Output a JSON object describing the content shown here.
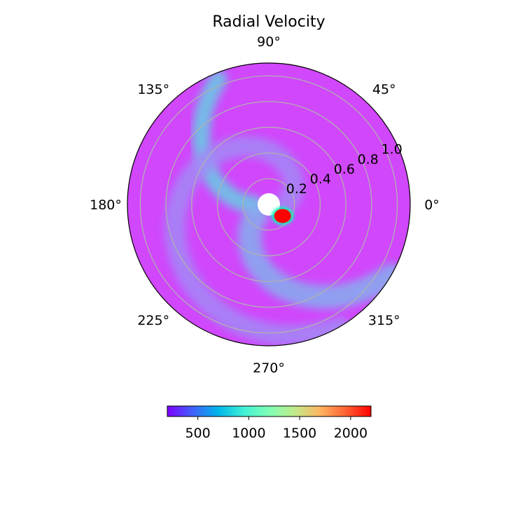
{
  "chart_data": {
    "type": "heatmap",
    "projection": "polar",
    "title": "Radial Velocity",
    "angular_ticks": [
      {
        "angle": 0,
        "label": "0°"
      },
      {
        "angle": 45,
        "label": "45°"
      },
      {
        "angle": 90,
        "label": "90°"
      },
      {
        "angle": 135,
        "label": "135°"
      },
      {
        "angle": 180,
        "label": "180°"
      },
      {
        "angle": 225,
        "label": "225°"
      },
      {
        "angle": 270,
        "label": "270°"
      },
      {
        "angle": 315,
        "label": "315°"
      }
    ],
    "radial_ticks": [
      {
        "value": 0.2,
        "label": "0.2"
      },
      {
        "value": 0.4,
        "label": "0.4"
      },
      {
        "value": 0.6,
        "label": "0.6"
      },
      {
        "value": 0.8,
        "label": "0.8"
      },
      {
        "value": 1.0,
        "label": "1.0"
      }
    ],
    "rlim": [
      0.0,
      1.1
    ],
    "inner_hole_radius": 0.06,
    "grid": true,
    "background_value": 380,
    "features": [
      {
        "kind": "spiral-stream",
        "start_angle": 112,
        "end_angle": 182,
        "r_start": 1.05,
        "r_end": 0.12,
        "value": 800
      },
      {
        "kind": "spiral-stream",
        "start_angle": 0,
        "end_angle": 300,
        "r_start": 0.12,
        "r_end": 1.1,
        "value": 560
      },
      {
        "kind": "spiral-stream",
        "start_angle": 220,
        "end_angle": 330,
        "r_start": 0.12,
        "r_end": 1.1,
        "value": 680
      },
      {
        "kind": "hot-spot",
        "angle": 320,
        "r": 0.14,
        "value": 2200
      }
    ],
    "colorbar": {
      "colormap": "rainbow",
      "vmin": 200,
      "vmax": 2200,
      "ticks": [
        {
          "value": 500,
          "label": "500"
        },
        {
          "value": 1000,
          "label": "1000"
        },
        {
          "value": 1500,
          "label": "1500"
        },
        {
          "value": 2000,
          "label": "2000"
        }
      ]
    }
  }
}
